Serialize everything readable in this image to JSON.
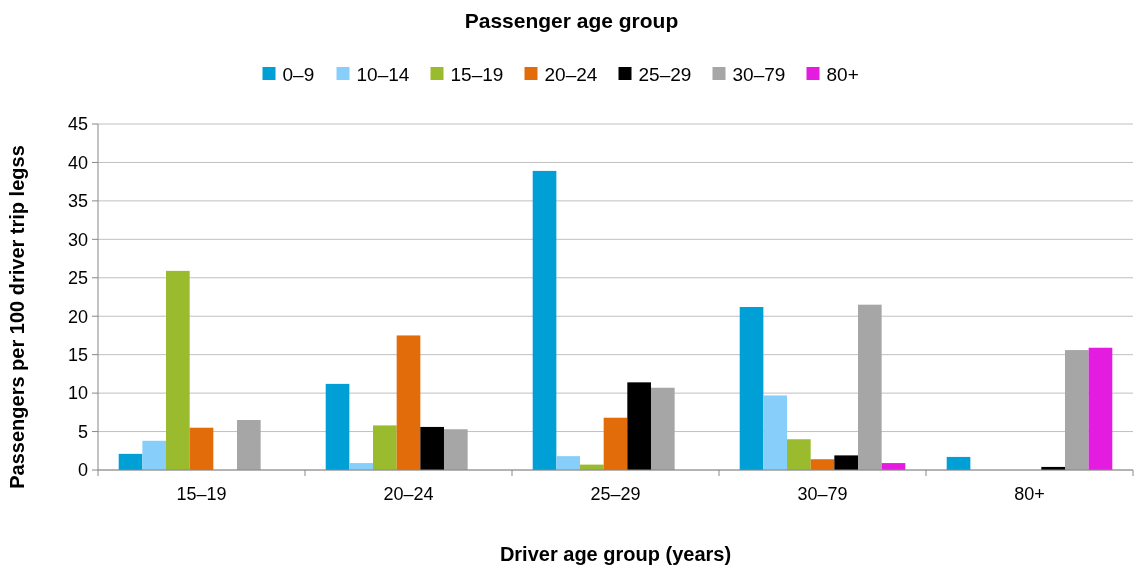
{
  "chart_data": {
    "type": "bar",
    "legend_title": "Passenger age group",
    "xlabel": "Driver age group (years)",
    "ylabel": "Passengers per 100 driver trip legss",
    "categories": [
      "15–19",
      "20–24",
      "25–29",
      "30–79",
      "80+"
    ],
    "series": [
      {
        "name": "0–9",
        "color": "#00a0d6",
        "values": [
          2.1,
          11.2,
          38.9,
          21.2,
          1.7
        ]
      },
      {
        "name": "10–14",
        "color": "#87cefa",
        "values": [
          3.8,
          0.9,
          1.8,
          9.7,
          0
        ]
      },
      {
        "name": "15–19",
        "color": "#9bbb2f",
        "values": [
          25.9,
          5.8,
          0.7,
          4.0,
          0
        ]
      },
      {
        "name": "20–24",
        "color": "#e36c0a",
        "values": [
          5.5,
          17.5,
          6.8,
          1.4,
          0
        ]
      },
      {
        "name": "25–29",
        "color": "#000000",
        "values": [
          0,
          5.6,
          11.4,
          1.9,
          0.4
        ]
      },
      {
        "name": "30–79",
        "color": "#a6a6a6",
        "values": [
          6.5,
          5.3,
          10.7,
          21.5,
          15.6
        ]
      },
      {
        "name": "80+",
        "color": "#e31ce0",
        "values": [
          0,
          0,
          0,
          0.9,
          15.9
        ]
      }
    ],
    "ylim": [
      0,
      45
    ],
    "yticks": [
      0,
      5,
      10,
      15,
      20,
      25,
      30,
      35,
      40,
      45
    ],
    "grid": "y",
    "legend": "top"
  }
}
